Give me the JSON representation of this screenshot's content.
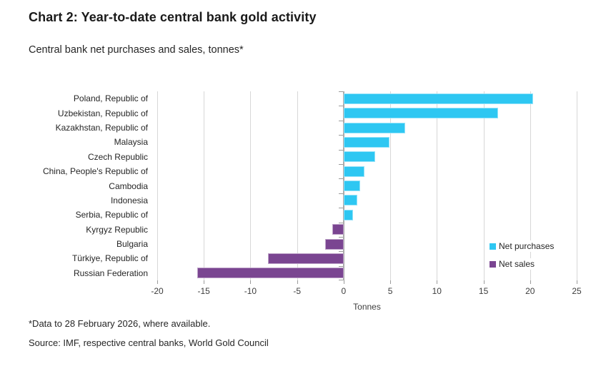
{
  "page": {
    "title": "Chart 2: Year-to-date central bank gold activity",
    "subtitle": "Central bank net purchases and sales, tonnes*",
    "footnote": "*Data to 28 February 2026, where available.",
    "source": "Source: IMF, respective central banks, World Gold Council"
  },
  "chart_data": {
    "type": "bar",
    "orientation": "horizontal",
    "title": "Chart 2: Year-to-date central bank gold activity",
    "subtitle": "Central bank net purchases and sales, tonnes*",
    "xlabel": "Tonnes",
    "xlim": [
      -20,
      25
    ],
    "xticks": [
      -20,
      -15,
      -10,
      -5,
      0,
      5,
      10,
      15,
      20,
      25
    ],
    "grid": true,
    "categories": [
      "Poland, Republic of",
      "Uzbekistan, Republic of",
      "Kazakhstan, Republic of",
      "Malaysia",
      "Czech Republic",
      "China, People's Republic of",
      "Cambodia",
      "Indonesia",
      "Serbia, Republic of",
      "Kyrgyz Republic",
      "Bulgaria",
      "Türkiye, Republic of",
      "Russian Federation"
    ],
    "values": [
      20.3,
      16.6,
      6.6,
      4.9,
      3.4,
      2.2,
      1.8,
      1.5,
      1.0,
      -1.2,
      -2.0,
      -8.1,
      -15.7
    ],
    "series_note": "positive values = Net purchases, negative values = Net sales",
    "legend": [
      {
        "label": "Net purchases",
        "color": "#2ec7f2"
      },
      {
        "label": "Net sales",
        "color": "#7a4591"
      }
    ],
    "legend_position": "right-middle"
  },
  "colors": {
    "net_purchases": "#2ec7f2",
    "net_sales": "#7a4591",
    "gridline": "#d7d7d7",
    "zero_line": "#ababab",
    "tick": "#9b9b9b",
    "text": "#262626"
  }
}
